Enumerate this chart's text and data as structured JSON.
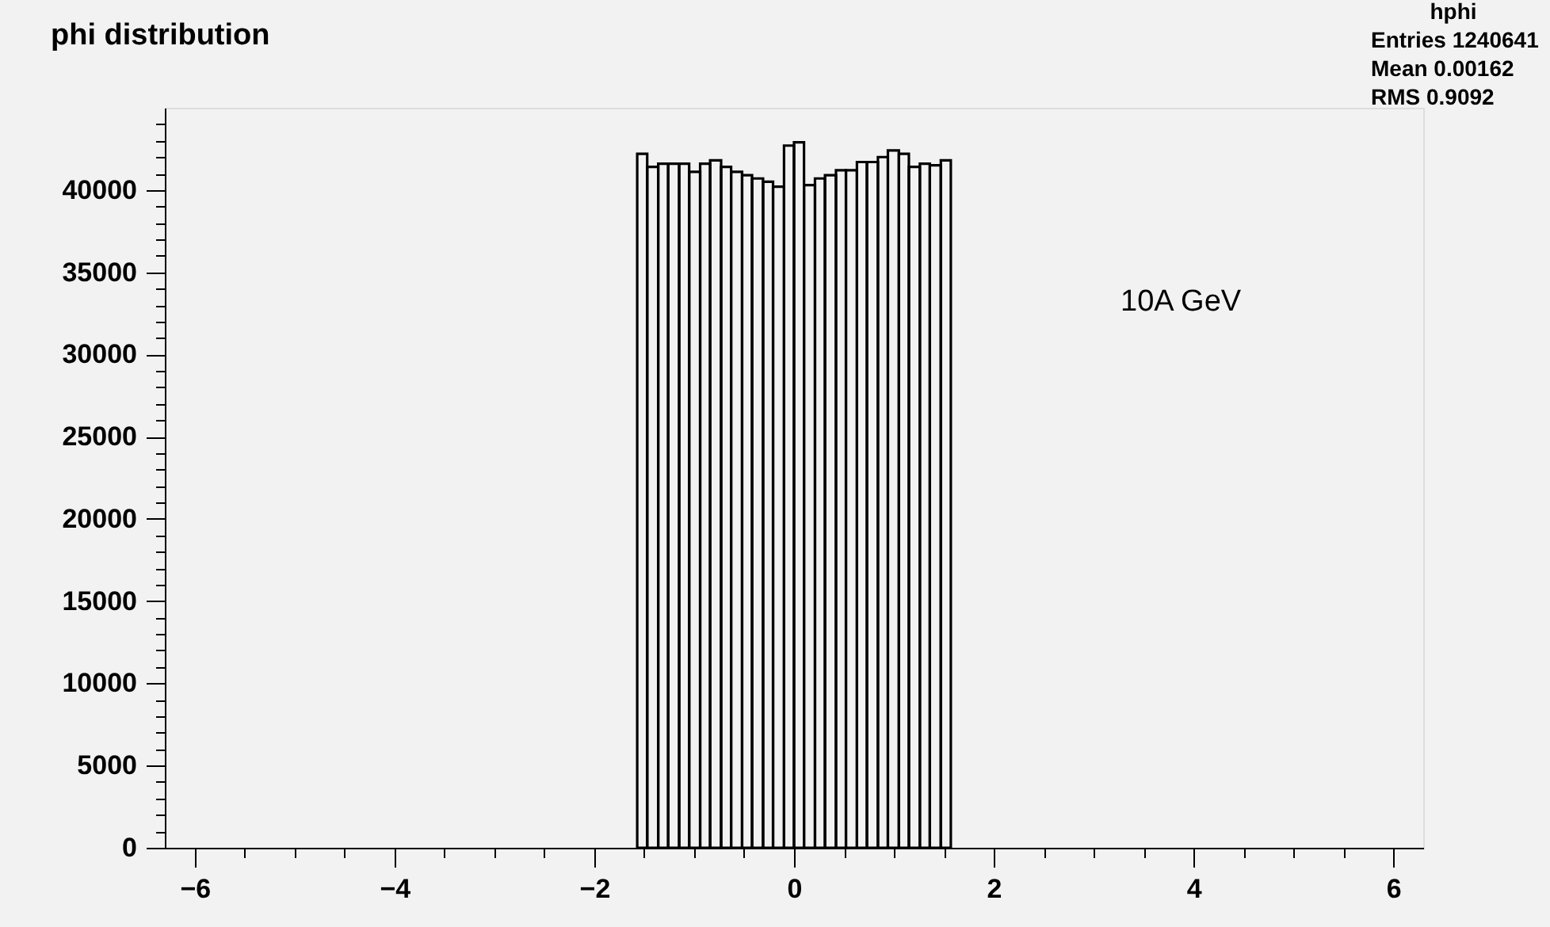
{
  "chart_data": {
    "type": "histogram",
    "title": "phi distribution",
    "bins": [
      -1.57,
      -1.47,
      -1.36,
      -1.26,
      -1.15,
      -1.05,
      -0.94,
      -0.84,
      -0.73,
      -0.63,
      -0.52,
      -0.42,
      -0.31,
      -0.21,
      -0.1,
      0.0,
      0.1,
      0.21,
      0.31,
      0.42,
      0.52,
      0.63,
      0.73,
      0.84,
      0.94,
      1.05,
      1.15,
      1.26,
      1.36,
      1.47,
      1.57
    ],
    "values": [
      42200,
      41400,
      41600,
      41600,
      41600,
      41100,
      41600,
      41800,
      41400,
      41100,
      40900,
      40700,
      40500,
      40200,
      42700,
      42900,
      40300,
      40700,
      40900,
      41200,
      41200,
      41700,
      41700,
      42000,
      42400,
      42200,
      41400,
      41600,
      41500,
      41800
    ],
    "color": "#000000",
    "xlim": [
      -6.3,
      6.3
    ],
    "xticks": [
      -6,
      {
        "value": -5.5,
        "label": null
      },
      {
        "value": -5,
        "label": null
      },
      {
        "value": -4.5,
        "label": null
      },
      -4,
      {
        "value": -3.5,
        "label": null
      },
      {
        "value": -3,
        "label": null
      },
      {
        "value": -2.5,
        "label": null
      },
      -2,
      {
        "value": -1.5,
        "label": null
      },
      {
        "value": -1,
        "label": null
      },
      {
        "value": -0.5,
        "label": null
      },
      0,
      {
        "value": 0.5,
        "label": null
      },
      {
        "value": 1,
        "label": null
      },
      {
        "value": 1.5,
        "label": null
      },
      2,
      {
        "value": 2.5,
        "label": null
      },
      {
        "value": 3,
        "label": null
      },
      {
        "value": 3.5,
        "label": null
      },
      4,
      {
        "value": 4.5,
        "label": null
      },
      {
        "value": 5,
        "label": null
      },
      {
        "value": 5.5,
        "label": null
      },
      6
    ],
    "ylim": [
      0,
      45000
    ],
    "yticks": [
      0,
      {
        "value": 1000,
        "label": null
      },
      {
        "value": 2000,
        "label": null
      },
      {
        "value": 3000,
        "label": null
      },
      {
        "value": 4000,
        "label": null
      },
      5000,
      {
        "value": 6000,
        "label": null
      },
      {
        "value": 7000,
        "label": null
      },
      {
        "value": 8000,
        "label": null
      },
      {
        "value": 9000,
        "label": null
      },
      10000,
      {
        "value": 11000,
        "label": null
      },
      {
        "value": 12000,
        "label": null
      },
      {
        "value": 13000,
        "label": null
      },
      {
        "value": 14000,
        "label": null
      },
      15000,
      {
        "value": 16000,
        "label": null
      },
      {
        "value": 17000,
        "label": null
      },
      {
        "value": 18000,
        "label": null
      },
      {
        "value": 19000,
        "label": null
      },
      20000,
      {
        "value": 21000,
        "label": null
      },
      {
        "value": 22000,
        "label": null
      },
      {
        "value": 23000,
        "label": null
      },
      {
        "value": 24000,
        "label": null
      },
      25000,
      {
        "value": 26000,
        "label": null
      },
      {
        "value": 27000,
        "label": null
      },
      {
        "value": 28000,
        "label": null
      },
      {
        "value": 29000,
        "label": null
      },
      30000,
      {
        "value": 31000,
        "label": null
      },
      {
        "value": 32000,
        "label": null
      },
      {
        "value": 33000,
        "label": null
      },
      {
        "value": 34000,
        "label": null
      },
      35000,
      {
        "value": 36000,
        "label": null
      },
      {
        "value": 37000,
        "label": null
      },
      {
        "value": 38000,
        "label": null
      },
      {
        "value": 39000,
        "label": null
      },
      40000,
      {
        "value": 41000,
        "label": null
      },
      {
        "value": 42000,
        "label": null
      },
      {
        "value": 43000,
        "label": null
      },
      {
        "value": 44000,
        "label": null
      }
    ],
    "grid": false,
    "annotations": [
      "hphi",
      "Entries 1240641",
      "Mean 0.00162",
      "RMS 0.9092",
      "10A GeV"
    ]
  }
}
